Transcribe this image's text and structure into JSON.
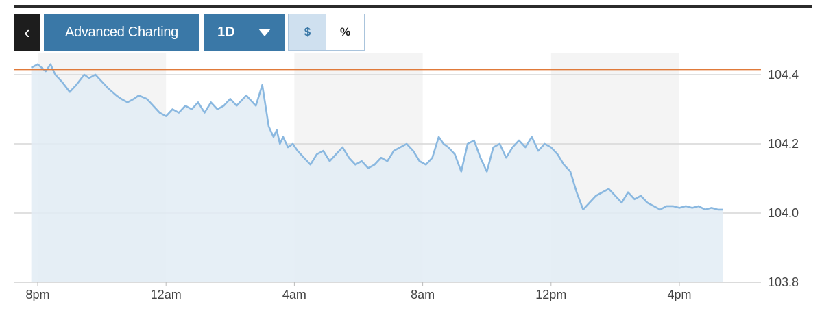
{
  "toolbar": {
    "back_icon": "chevron-left-icon",
    "back_glyph": "‹",
    "advanced_label": "Advanced Charting",
    "range_label": "1D",
    "range_icon": "caret-down-icon",
    "toggle_dollar": "$",
    "toggle_percent": "%",
    "active_toggle": "$"
  },
  "colors": {
    "line": "#8ab8e0",
    "area": "#e2ecf4",
    "reference": "#e07a3a",
    "band": "#f4f4f4",
    "grid": "#d6d6d6",
    "button": "#3a78a7"
  },
  "chart_data": {
    "type": "area",
    "reference_value": 104.415,
    "ylim": [
      103.8,
      104.5
    ],
    "y_ticks": [
      {
        "value": 104.4,
        "label": "104.4"
      },
      {
        "value": 104.2,
        "label": "104.2"
      },
      {
        "value": 104.0,
        "label": "104.0"
      },
      {
        "value": 103.8,
        "label": "103.8"
      }
    ],
    "xlim": [
      -0.1,
      21.5
    ],
    "x_ticks": [
      {
        "value": 0,
        "label": "8pm"
      },
      {
        "value": 4,
        "label": "12am"
      },
      {
        "value": 8,
        "label": "4am"
      },
      {
        "value": 12,
        "label": "8am"
      },
      {
        "value": 16,
        "label": "12pm"
      },
      {
        "value": 20,
        "label": "4pm"
      }
    ],
    "x": [
      -0.2,
      0.0,
      0.25,
      0.4,
      0.55,
      0.75,
      1.0,
      1.2,
      1.45,
      1.6,
      1.8,
      2.0,
      2.2,
      2.45,
      2.6,
      2.8,
      3.0,
      3.15,
      3.4,
      3.6,
      3.8,
      4.0,
      4.2,
      4.4,
      4.6,
      4.8,
      5.0,
      5.2,
      5.4,
      5.6,
      5.8,
      6.0,
      6.2,
      6.5,
      6.8,
      7.0,
      7.2,
      7.35,
      7.45,
      7.55,
      7.65,
      7.8,
      7.95,
      8.1,
      8.3,
      8.5,
      8.7,
      8.9,
      9.1,
      9.3,
      9.5,
      9.7,
      9.9,
      10.1,
      10.3,
      10.5,
      10.7,
      10.9,
      11.1,
      11.3,
      11.5,
      11.7,
      11.9,
      12.1,
      12.3,
      12.5,
      12.65,
      12.8,
      13.0,
      13.2,
      13.4,
      13.6,
      13.8,
      14.0,
      14.2,
      14.4,
      14.6,
      14.8,
      15.0,
      15.2,
      15.4,
      15.6,
      15.8,
      16.0,
      16.2,
      16.4,
      16.6,
      16.8,
      17.0,
      17.2,
      17.4,
      17.6,
      17.8,
      18.0,
      18.2,
      18.4,
      18.6,
      18.8,
      19.0,
      19.2,
      19.4,
      19.6,
      19.8,
      20.0,
      20.2,
      20.4,
      20.6,
      20.8,
      21.0,
      21.2,
      21.35
    ],
    "values": [
      104.42,
      104.43,
      104.41,
      104.43,
      104.4,
      104.38,
      104.35,
      104.37,
      104.4,
      104.39,
      104.4,
      104.38,
      104.36,
      104.34,
      104.33,
      104.32,
      104.33,
      104.34,
      104.33,
      104.31,
      104.29,
      104.28,
      104.3,
      104.29,
      104.31,
      104.3,
      104.32,
      104.29,
      104.32,
      104.3,
      104.31,
      104.33,
      104.31,
      104.34,
      104.31,
      104.37,
      104.25,
      104.22,
      104.24,
      104.2,
      104.22,
      104.19,
      104.2,
      104.18,
      104.16,
      104.14,
      104.17,
      104.18,
      104.15,
      104.17,
      104.19,
      104.16,
      104.14,
      104.15,
      104.13,
      104.14,
      104.16,
      104.15,
      104.18,
      104.19,
      104.2,
      104.18,
      104.15,
      104.14,
      104.16,
      104.22,
      104.2,
      104.19,
      104.17,
      104.12,
      104.2,
      104.21,
      104.16,
      104.12,
      104.19,
      104.2,
      104.16,
      104.19,
      104.21,
      104.19,
      104.22,
      104.18,
      104.2,
      104.19,
      104.17,
      104.14,
      104.12,
      104.06,
      104.01,
      104.03,
      104.05,
      104.06,
      104.07,
      104.05,
      104.03,
      104.06,
      104.04,
      104.05,
      104.03,
      104.02,
      104.01,
      104.02,
      104.02,
      104.015,
      104.02,
      104.015,
      104.02,
      104.01,
      104.015,
      104.01,
      104.01
    ]
  }
}
